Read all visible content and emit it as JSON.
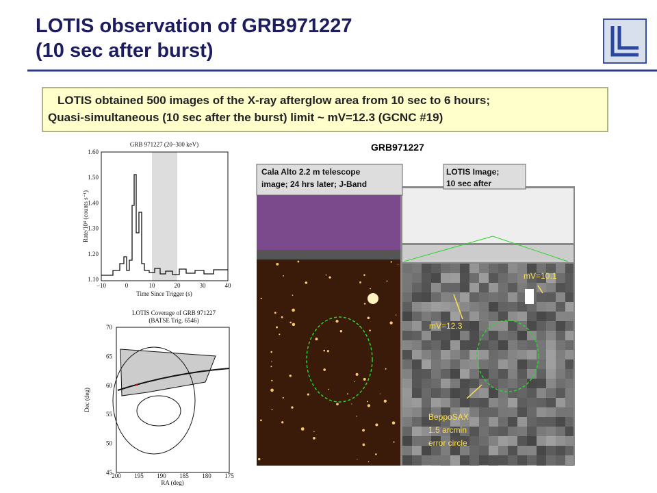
{
  "header": {
    "title_lines": [
      "LOTIS observation of GRB971227",
      "(10 sec after burst)"
    ]
  },
  "summary": {
    "lines": [
      "LOTIS obtained 500 images of the X-ray afterglow area from 10 sec to 6 hours;",
      "Quasi-simultaneous (10 sec after the burst) limit ~ mV=12.3 (GCNC #19)"
    ]
  },
  "figure_title": "GRB971227",
  "light_curve": {
    "title": "GRB 971227 (20–300 keV)",
    "x_label": "Time Since Trigger (s)",
    "y_label": "Rate/10⁴ (counts s⁻¹)",
    "x_ticks": [
      "−10",
      "0",
      "10",
      "20",
      "30",
      "40"
    ],
    "y_ticks": [
      "1.60",
      "1.50",
      "1.40",
      "1.30",
      "1.20",
      "1.10"
    ]
  },
  "coverage": {
    "title_lines": [
      "LOTIS Coverage of GRB 971227",
      "(BATSE Trig. 6546)"
    ],
    "x_label": "RA (deg)",
    "y_label": "Dec (deg)",
    "x_ticks": [
      "200",
      "195",
      "190",
      "185",
      "180",
      "175"
    ],
    "y_ticks": [
      "70",
      "65",
      "60",
      "55",
      "50",
      "45"
    ]
  },
  "image_labels": {
    "cala_alto": [
      "Cala Alto 2.2 m telescope",
      "image; 24 hrs later; J-Band"
    ],
    "lotis": [
      "LOTIS Image;",
      "10 sec after"
    ]
  },
  "annotations": {
    "bright_star": "mV=10.1",
    "faint_star": "mV=12.3",
    "error_circle": [
      "BeppoSAX",
      "1.5 arcmin",
      "error circle"
    ]
  }
}
